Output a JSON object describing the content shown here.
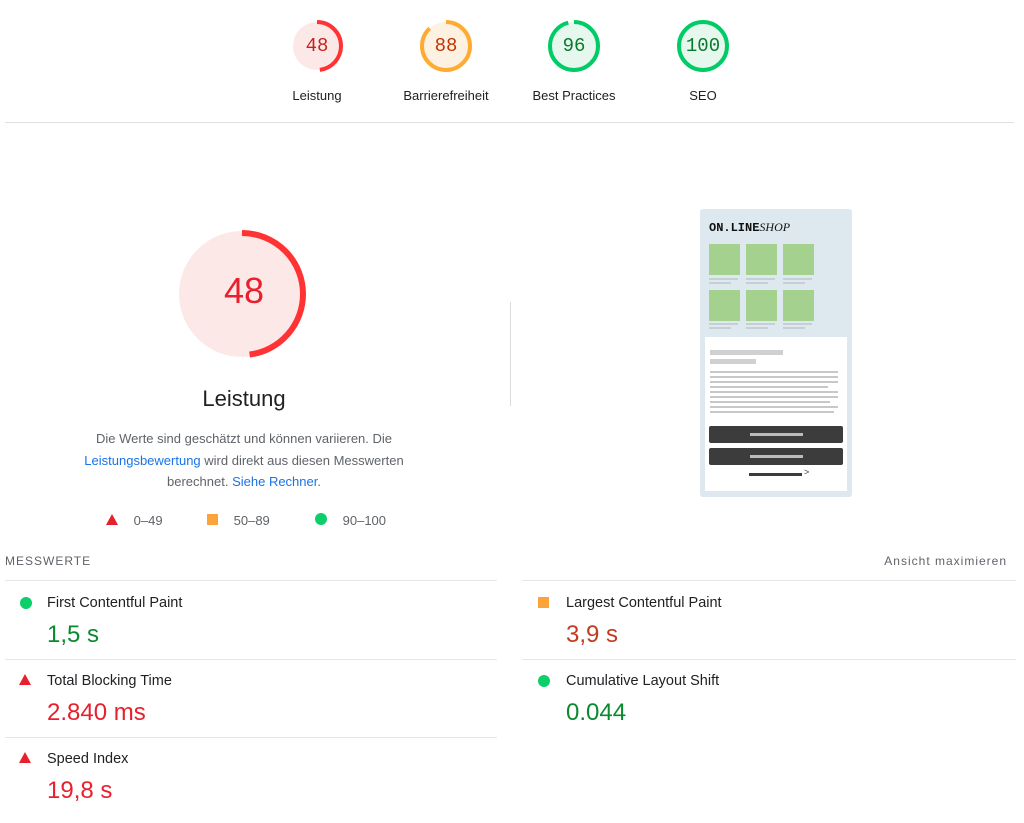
{
  "categories": [
    {
      "score": "48",
      "label": "Leistung",
      "score_fraction": 0.48,
      "color": "#ff3333",
      "bg": "#fde8e8",
      "text_color": "#c5221f"
    },
    {
      "score": "88",
      "label": "Barrierefreiheit",
      "score_fraction": 0.88,
      "color": "#ffaa33",
      "bg": "#fdf1e2",
      "text_color": "#c33300"
    },
    {
      "score": "96",
      "label": "Best Practices",
      "score_fraction": 0.96,
      "color": "#00cc66",
      "bg": "#e6f7ee",
      "text_color": "#0a7a2e"
    },
    {
      "score": "100",
      "label": "SEO",
      "score_fraction": 1.0,
      "color": "#00cc66",
      "bg": "#e6f7ee",
      "text_color": "#0a7a2e"
    }
  ],
  "main_score": {
    "score": "48",
    "score_fraction": 0.48,
    "title": "Leistung",
    "desc_part1": "Die Werte sind geschätzt und können variieren. Die",
    "desc_link1": "Leistungsbewertung",
    "desc_part2": " wird direkt aus diesen Messwerten berechnet.",
    "desc_link2": "Siehe Rechner."
  },
  "legend": [
    {
      "shape": "triangle",
      "color": "#e8202d",
      "label": "0–49"
    },
    {
      "shape": "square",
      "color": "#faa43a",
      "label": "50–89"
    },
    {
      "shape": "circle",
      "color": "#0cce6b",
      "label": "90–100"
    }
  ],
  "thumbnail": {
    "logo_bold": "ON.LINE",
    "logo_italic": "SHOP"
  },
  "metrics_header": {
    "title": "MESSWERTE",
    "maximize": "Ansicht maximieren"
  },
  "metrics": [
    {
      "name": "First Contentful Paint",
      "value": "1,5 s",
      "status": "good"
    },
    {
      "name": "Largest Contentful Paint",
      "value": "3,9 s",
      "status": "average"
    },
    {
      "name": "Total Blocking Time",
      "value": "2.840 ms",
      "status": "poor"
    },
    {
      "name": "Cumulative Layout Shift",
      "value": "0.044",
      "status": "good"
    },
    {
      "name": "Speed Index",
      "value": "19,8 s",
      "status": "poor"
    }
  ]
}
